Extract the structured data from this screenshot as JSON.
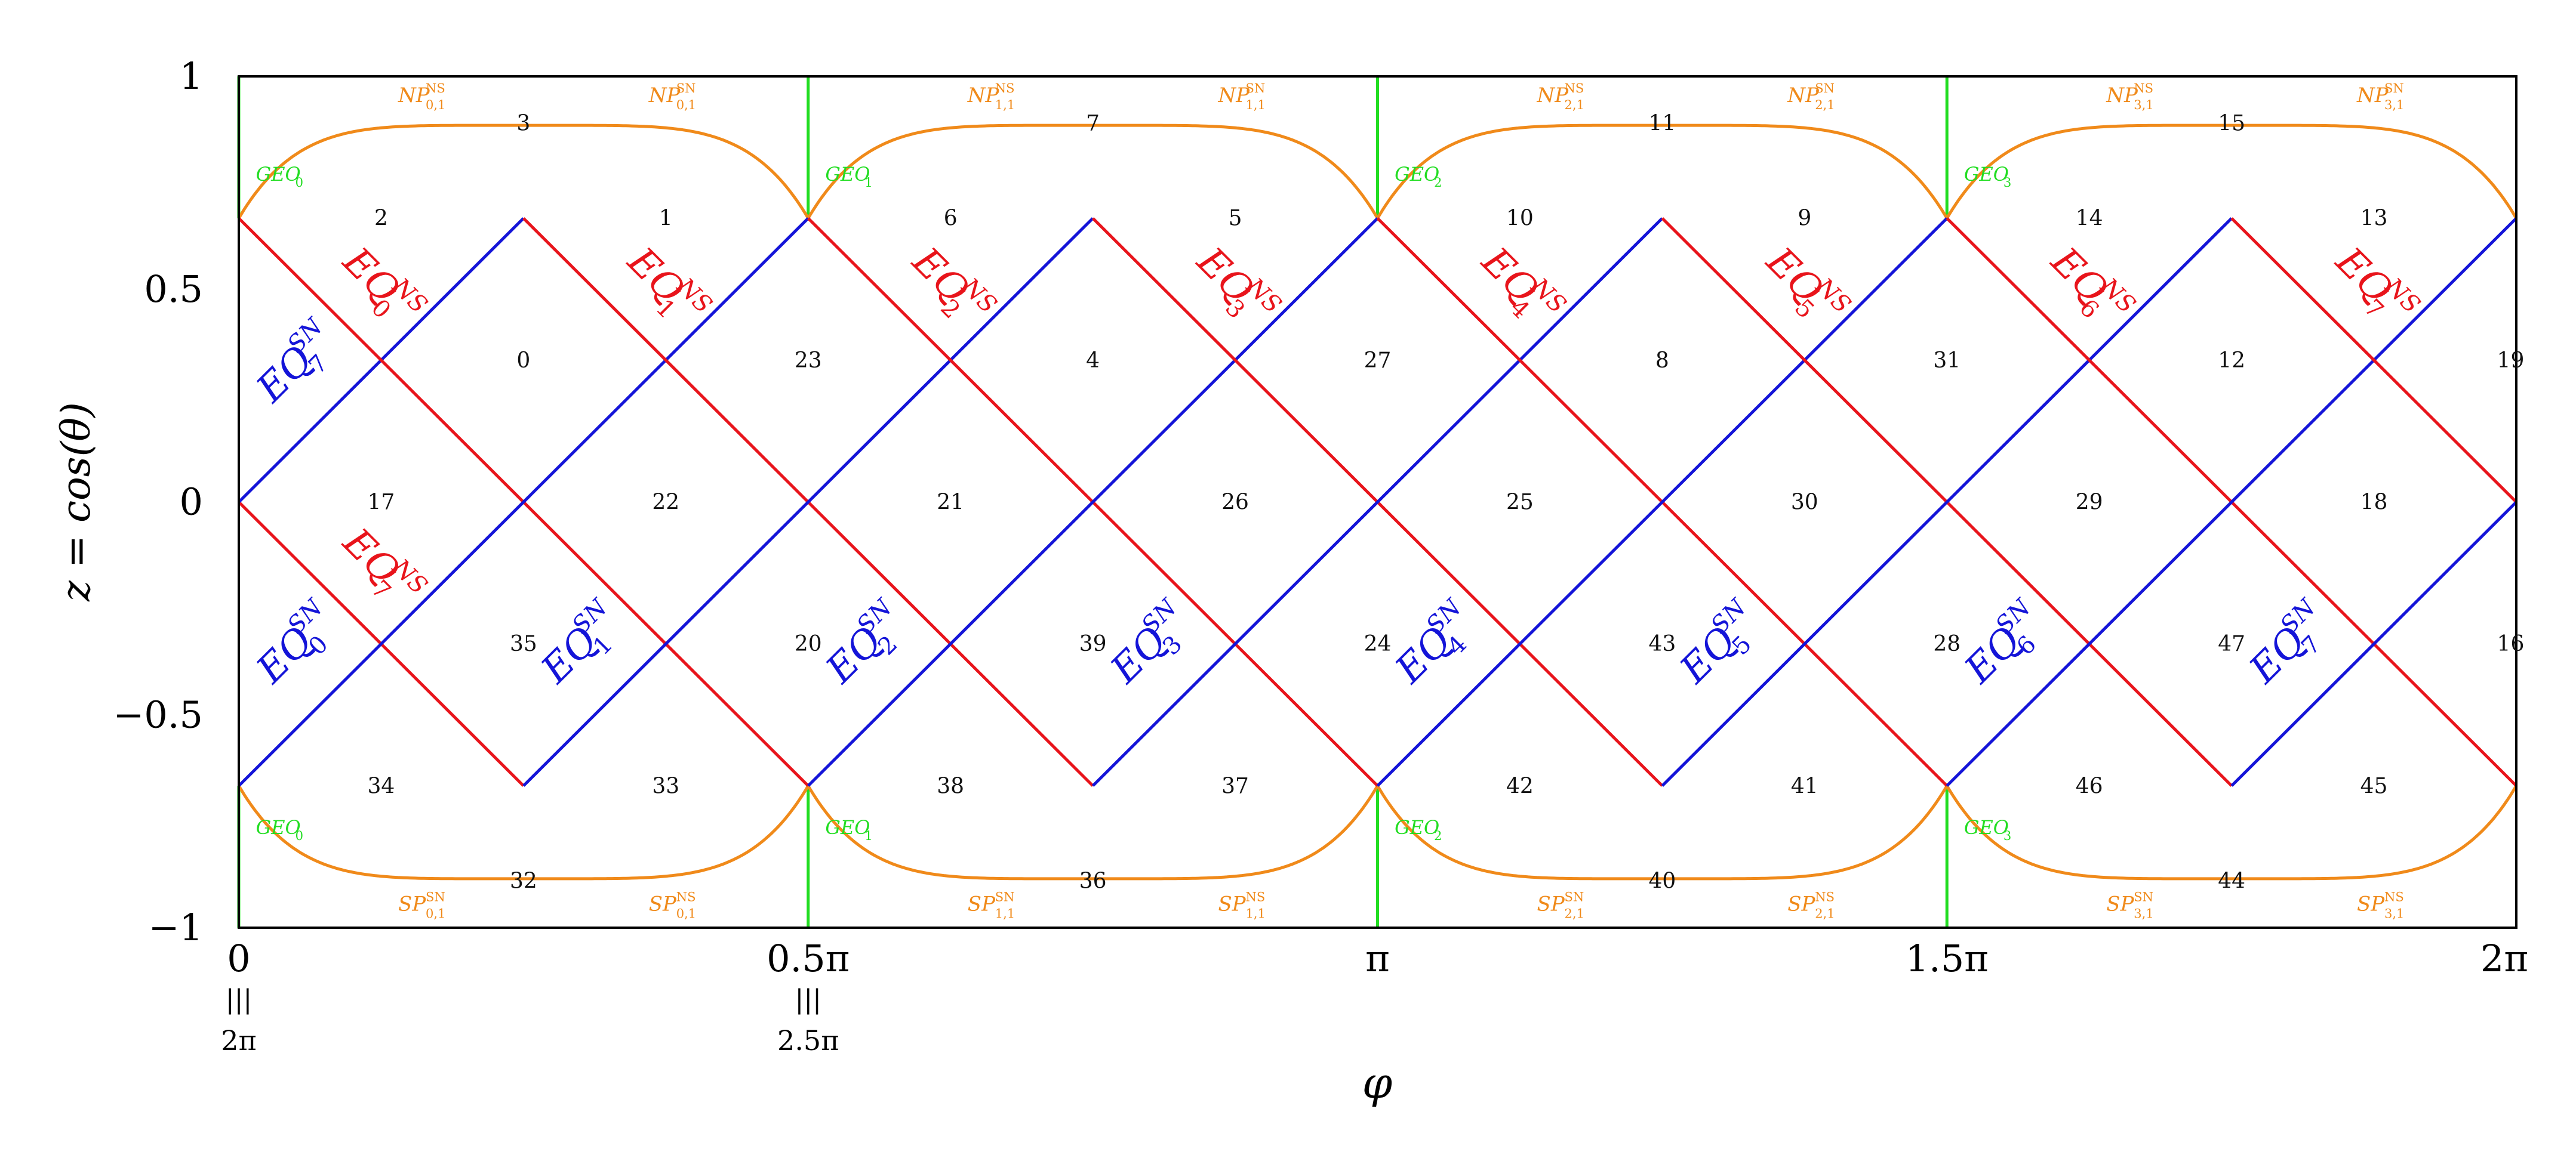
{
  "axes": {
    "ylabel": "z = cos(θ)",
    "xlabel": "φ",
    "yticks": [
      {
        "value": 1,
        "label": "1"
      },
      {
        "value": 0.5,
        "label": "0.5"
      },
      {
        "value": 0,
        "label": "0"
      },
      {
        "value": -0.5,
        "label": "−0.5"
      },
      {
        "value": -1,
        "label": "−1"
      }
    ],
    "xticks": [
      {
        "value": 0,
        "label": "0",
        "equiv": "2π"
      },
      {
        "value": 0.5,
        "label": "0.5π",
        "equiv": "2.5π"
      },
      {
        "value": 1,
        "label": "π"
      },
      {
        "value": 1.5,
        "label": "1.5π"
      },
      {
        "value": 2,
        "label": "2π"
      }
    ],
    "equiv_symbol": "|||",
    "xlim": [
      0,
      2
    ],
    "ylim": [
      -1,
      1
    ]
  },
  "colors": {
    "eq_ns": "#e8141b",
    "eq_sn": "#1414d8",
    "polar": "#f08a1a",
    "geo": "#22dd22",
    "frame": "#000000"
  },
  "cells": [
    {
      "label": "3",
      "phi": 0.25,
      "z": 0.89
    },
    {
      "label": "7",
      "phi": 0.75,
      "z": 0.89
    },
    {
      "label": "11",
      "phi": 1.25,
      "z": 0.89
    },
    {
      "label": "15",
      "phi": 1.75,
      "z": 0.89
    },
    {
      "label": "2",
      "phi": 0.125,
      "z": 0.667
    },
    {
      "label": "1",
      "phi": 0.375,
      "z": 0.667
    },
    {
      "label": "6",
      "phi": 0.625,
      "z": 0.667
    },
    {
      "label": "5",
      "phi": 0.875,
      "z": 0.667
    },
    {
      "label": "10",
      "phi": 1.125,
      "z": 0.667
    },
    {
      "label": "9",
      "phi": 1.375,
      "z": 0.667
    },
    {
      "label": "14",
      "phi": 1.625,
      "z": 0.667
    },
    {
      "label": "13",
      "phi": 1.875,
      "z": 0.667
    },
    {
      "label": "0",
      "phi": 0.25,
      "z": 0.333
    },
    {
      "label": "23",
      "phi": 0.5,
      "z": 0.333
    },
    {
      "label": "4",
      "phi": 0.75,
      "z": 0.333
    },
    {
      "label": "27",
      "phi": 1.0,
      "z": 0.333
    },
    {
      "label": "8",
      "phi": 1.25,
      "z": 0.333
    },
    {
      "label": "31",
      "phi": 1.5,
      "z": 0.333
    },
    {
      "label": "12",
      "phi": 1.75,
      "z": 0.333
    },
    {
      "label": "19",
      "phi": 1.995,
      "z": 0.333
    },
    {
      "label": "17",
      "phi": 0.125,
      "z": 0.0
    },
    {
      "label": "22",
      "phi": 0.375,
      "z": 0.0
    },
    {
      "label": "21",
      "phi": 0.625,
      "z": 0.0
    },
    {
      "label": "26",
      "phi": 0.875,
      "z": 0.0
    },
    {
      "label": "25",
      "phi": 1.125,
      "z": 0.0
    },
    {
      "label": "30",
      "phi": 1.375,
      "z": 0.0
    },
    {
      "label": "29",
      "phi": 1.625,
      "z": 0.0
    },
    {
      "label": "18",
      "phi": 1.875,
      "z": 0.0
    },
    {
      "label": "35",
      "phi": 0.25,
      "z": -0.333
    },
    {
      "label": "20",
      "phi": 0.5,
      "z": -0.333
    },
    {
      "label": "39",
      "phi": 0.75,
      "z": -0.333
    },
    {
      "label": "24",
      "phi": 1.0,
      "z": -0.333
    },
    {
      "label": "43",
      "phi": 1.25,
      "z": -0.333
    },
    {
      "label": "28",
      "phi": 1.5,
      "z": -0.333
    },
    {
      "label": "47",
      "phi": 1.75,
      "z": -0.333
    },
    {
      "label": "16",
      "phi": 1.995,
      "z": -0.333
    },
    {
      "label": "34",
      "phi": 0.125,
      "z": -0.667
    },
    {
      "label": "33",
      "phi": 0.375,
      "z": -0.667
    },
    {
      "label": "38",
      "phi": 0.625,
      "z": -0.667
    },
    {
      "label": "37",
      "phi": 0.875,
      "z": -0.667
    },
    {
      "label": "42",
      "phi": 1.125,
      "z": -0.667
    },
    {
      "label": "41",
      "phi": 1.375,
      "z": -0.667
    },
    {
      "label": "46",
      "phi": 1.625,
      "z": -0.667
    },
    {
      "label": "45",
      "phi": 1.875,
      "z": -0.667
    },
    {
      "label": "32",
      "phi": 0.25,
      "z": -0.89
    },
    {
      "label": "36",
      "phi": 0.75,
      "z": -0.89
    },
    {
      "label": "40",
      "phi": 1.25,
      "z": -0.89
    },
    {
      "label": "44",
      "phi": 1.75,
      "z": -0.89
    }
  ],
  "eq_ns_labels": [
    {
      "base": "EQ",
      "sub": "0",
      "sup": "NS",
      "phi": 0.09,
      "z": 0.56
    },
    {
      "base": "EQ",
      "sub": "1",
      "sup": "NS",
      "phi": 0.34,
      "z": 0.56
    },
    {
      "base": "EQ",
      "sub": "2",
      "sup": "NS",
      "phi": 0.59,
      "z": 0.56
    },
    {
      "base": "EQ",
      "sub": "3",
      "sup": "NS",
      "phi": 0.84,
      "z": 0.56
    },
    {
      "base": "EQ",
      "sub": "4",
      "sup": "NS",
      "phi": 1.09,
      "z": 0.56
    },
    {
      "base": "EQ",
      "sub": "5",
      "sup": "NS",
      "phi": 1.34,
      "z": 0.56
    },
    {
      "base": "EQ",
      "sub": "6",
      "sup": "NS",
      "phi": 1.59,
      "z": 0.56
    },
    {
      "base": "EQ",
      "sub": "7",
      "sup": "NS",
      "phi": 1.84,
      "z": 0.56
    },
    {
      "base": "EQ",
      "sub": "7",
      "sup": "NS",
      "phi": 0.09,
      "z": -0.1
    }
  ],
  "eq_sn_labels": [
    {
      "base": "EQ",
      "sub": "7",
      "sup": "SN",
      "phi": 0.03,
      "z": 0.23
    },
    {
      "base": "EQ",
      "sub": "0",
      "sup": "SN",
      "phi": 0.03,
      "z": -0.43
    },
    {
      "base": "EQ",
      "sub": "1",
      "sup": "SN",
      "phi": 0.28,
      "z": -0.43
    },
    {
      "base": "EQ",
      "sub": "2",
      "sup": "SN",
      "phi": 0.53,
      "z": -0.43
    },
    {
      "base": "EQ",
      "sub": "3",
      "sup": "SN",
      "phi": 0.78,
      "z": -0.43
    },
    {
      "base": "EQ",
      "sub": "4",
      "sup": "SN",
      "phi": 1.03,
      "z": -0.43
    },
    {
      "base": "EQ",
      "sub": "5",
      "sup": "SN",
      "phi": 1.28,
      "z": -0.43
    },
    {
      "base": "EQ",
      "sub": "6",
      "sup": "SN",
      "phi": 1.53,
      "z": -0.43
    },
    {
      "base": "EQ",
      "sub": "7",
      "sup": "SN",
      "phi": 1.78,
      "z": -0.43
    }
  ],
  "polar_labels": [
    {
      "base": "NP",
      "sub": "0,1",
      "sup": "NS",
      "phi": 0.14,
      "z": 0.94
    },
    {
      "base": "NP",
      "sub": "0,1",
      "sup": "SN",
      "phi": 0.36,
      "z": 0.94
    },
    {
      "base": "NP",
      "sub": "1,1",
      "sup": "NS",
      "phi": 0.64,
      "z": 0.94
    },
    {
      "base": "NP",
      "sub": "1,1",
      "sup": "SN",
      "phi": 0.86,
      "z": 0.94
    },
    {
      "base": "NP",
      "sub": "2,1",
      "sup": "NS",
      "phi": 1.14,
      "z": 0.94
    },
    {
      "base": "NP",
      "sub": "2,1",
      "sup": "SN",
      "phi": 1.36,
      "z": 0.94
    },
    {
      "base": "NP",
      "sub": "3,1",
      "sup": "NS",
      "phi": 1.64,
      "z": 0.94
    },
    {
      "base": "NP",
      "sub": "3,1",
      "sup": "SN",
      "phi": 1.86,
      "z": 0.94
    },
    {
      "base": "SP",
      "sub": "0,1",
      "sup": "SN",
      "phi": 0.14,
      "z": -0.96
    },
    {
      "base": "SP",
      "sub": "0,1",
      "sup": "NS",
      "phi": 0.36,
      "z": -0.96
    },
    {
      "base": "SP",
      "sub": "1,1",
      "sup": "SN",
      "phi": 0.64,
      "z": -0.96
    },
    {
      "base": "SP",
      "sub": "1,1",
      "sup": "NS",
      "phi": 0.86,
      "z": -0.96
    },
    {
      "base": "SP",
      "sub": "2,1",
      "sup": "SN",
      "phi": 1.14,
      "z": -0.96
    },
    {
      "base": "SP",
      "sub": "2,1",
      "sup": "NS",
      "phi": 1.36,
      "z": -0.96
    },
    {
      "base": "SP",
      "sub": "3,1",
      "sup": "SN",
      "phi": 1.64,
      "z": -0.96
    },
    {
      "base": "SP",
      "sub": "3,1",
      "sup": "NS",
      "phi": 1.86,
      "z": -0.96
    }
  ],
  "geo_labels": [
    {
      "base": "GEO",
      "sub": "0",
      "phi": 0.015,
      "z": 0.755
    },
    {
      "base": "GEO",
      "sub": "1",
      "phi": 0.515,
      "z": 0.755
    },
    {
      "base": "GEO",
      "sub": "2",
      "phi": 1.015,
      "z": 0.755
    },
    {
      "base": "GEO",
      "sub": "3",
      "phi": 1.515,
      "z": 0.755
    },
    {
      "base": "GEO",
      "sub": "0",
      "phi": 0.015,
      "z": -0.78
    },
    {
      "base": "GEO",
      "sub": "1",
      "phi": 0.515,
      "z": -0.78
    },
    {
      "base": "GEO",
      "sub": "2",
      "phi": 1.015,
      "z": -0.78
    },
    {
      "base": "GEO",
      "sub": "3",
      "phi": 1.515,
      "z": -0.78
    }
  ]
}
